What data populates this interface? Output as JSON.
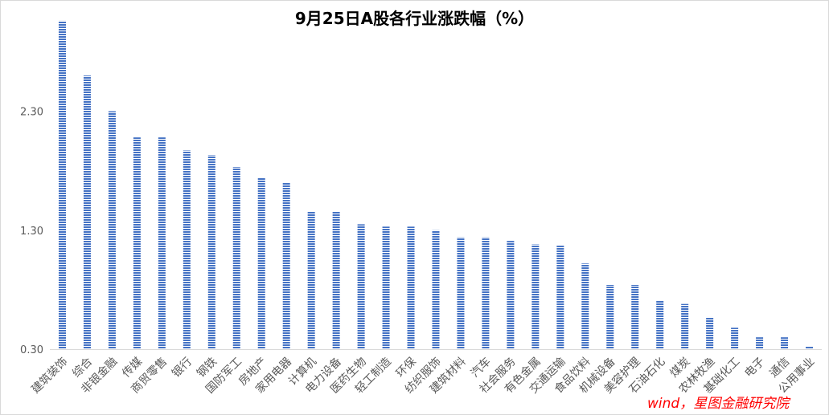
{
  "colors": {
    "bar": "#4472c4",
    "tick_text": "#595959",
    "axis": "#d9d9d9",
    "source_note": "#ff0000"
  },
  "source_note": "wind，星图金融研究院",
  "chart_data": {
    "type": "bar",
    "title": "9月25日A股各行业涨跌幅（%）",
    "xlabel": "",
    "ylabel": "",
    "ylim": [
      0.3,
      3.1
    ],
    "yticks": [
      0.3,
      1.3,
      2.3
    ],
    "ytick_labels": [
      "0.30",
      "1.30",
      "2.30"
    ],
    "grid": false,
    "legend": "none",
    "bar_pattern": "horizontal-stripes",
    "categories": [
      "建筑装饰",
      "综合",
      "非银金融",
      "传媒",
      "商贸零售",
      "银行",
      "钢铁",
      "国防军工",
      "房地产",
      "家用电器",
      "计算机",
      "电力设备",
      "医药生物",
      "轻工制造",
      "环保",
      "纺织服饰",
      "建筑材料",
      "汽车",
      "社会服务",
      "有色金属",
      "交通运输",
      "食品饮料",
      "机械设备",
      "美容护理",
      "石油石化",
      "煤炭",
      "农林牧渔",
      "基础化工",
      "电子",
      "通信",
      "公用事业"
    ],
    "values": [
      3.06,
      2.6,
      2.3,
      2.08,
      2.08,
      1.97,
      1.93,
      1.83,
      1.74,
      1.7,
      1.46,
      1.46,
      1.35,
      1.33,
      1.33,
      1.3,
      1.24,
      1.24,
      1.21,
      1.18,
      1.17,
      1.02,
      0.84,
      0.84,
      0.71,
      0.68,
      0.57,
      0.48,
      0.4,
      0.4,
      0.32
    ]
  }
}
